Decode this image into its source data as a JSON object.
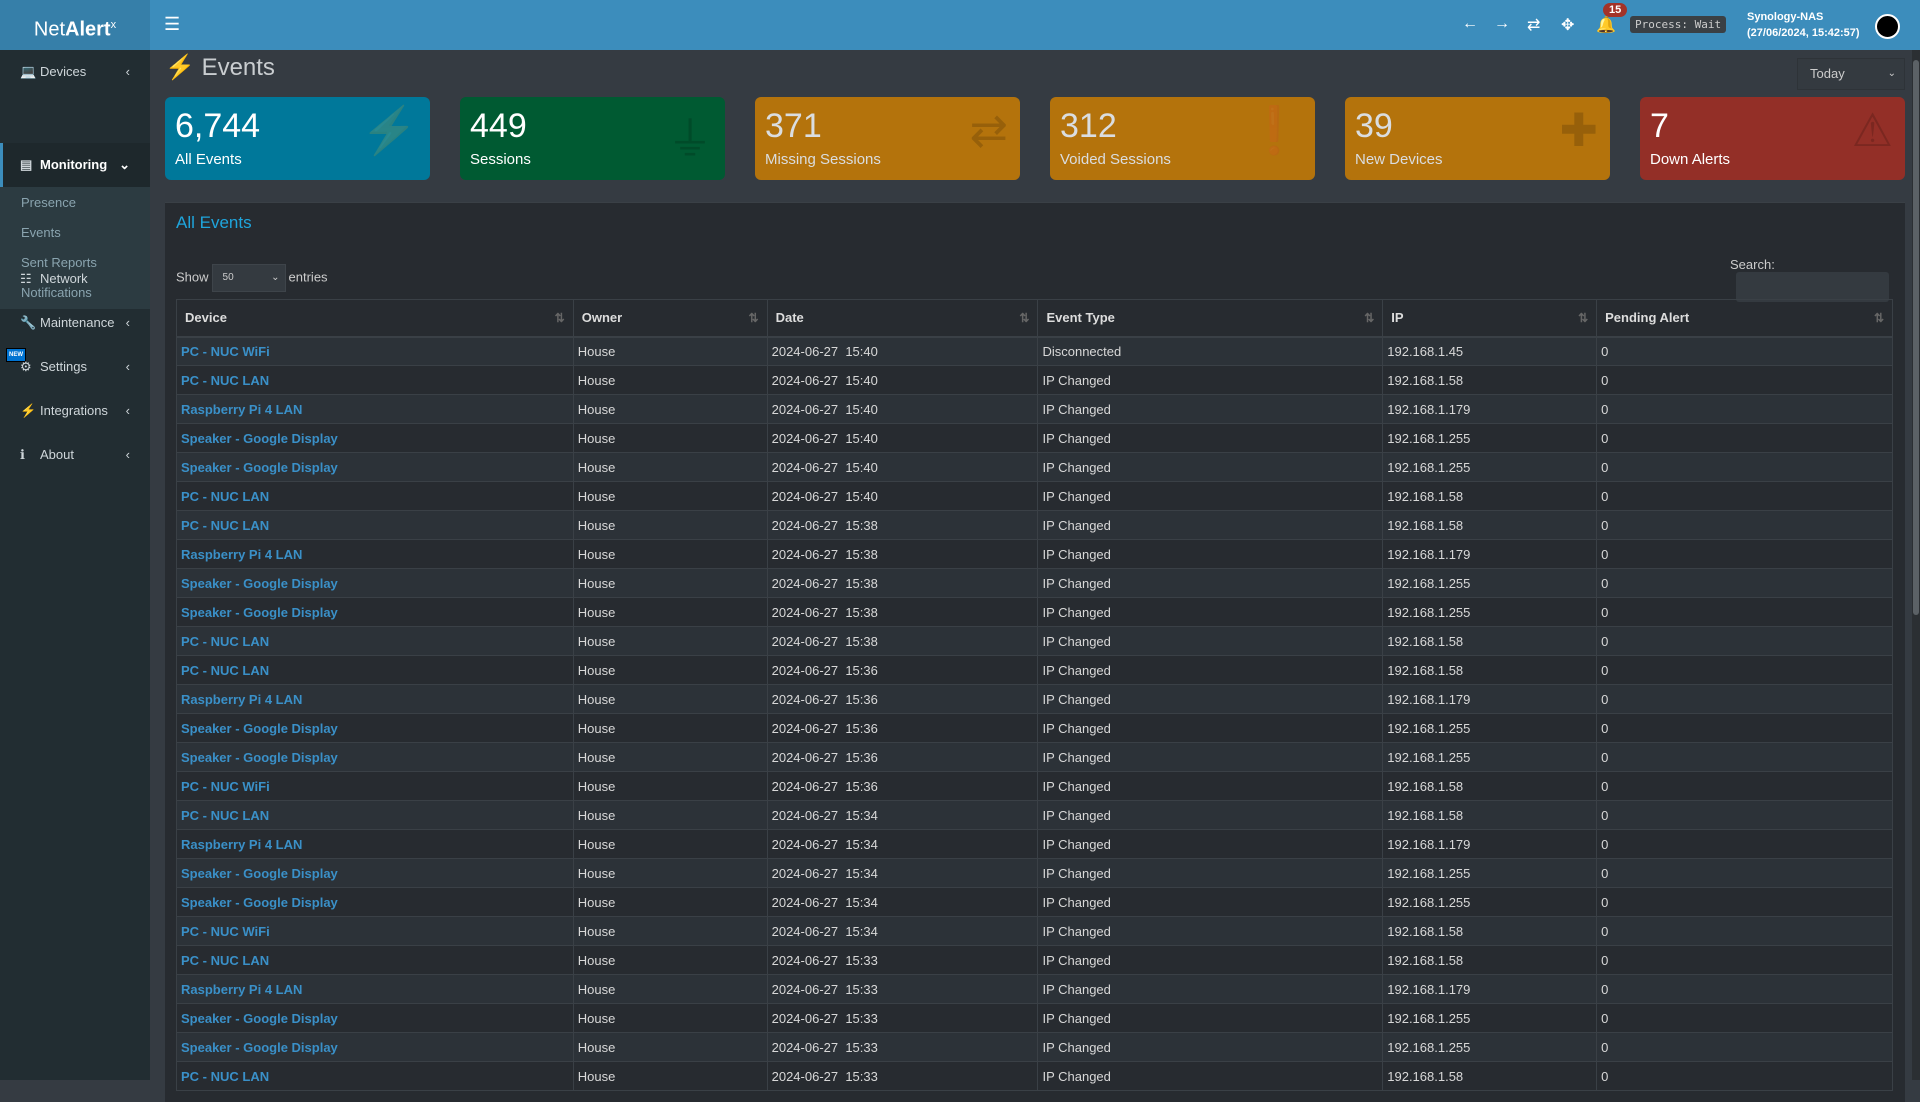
{
  "app": {
    "logo_main": "Net",
    "logo_bold": "Alert",
    "logo_sup": "x"
  },
  "header": {
    "notifications_count": "15",
    "process_status": "Process: Wait",
    "host_name": "Synology-NAS",
    "host_time": "(27/06/2024, 15:42:57)"
  },
  "sidebar": {
    "items": [
      {
        "label": "Devices",
        "icon": "laptop-icon"
      },
      {
        "label": "Monitoring",
        "icon": "chart-icon",
        "active": true,
        "subitems": [
          "Presence",
          "Events",
          "Sent Reports",
          "Notifications"
        ]
      },
      {
        "label": "Network",
        "icon": "network-icon"
      },
      {
        "label": "Maintenance",
        "icon": "wrench-icon",
        "badge": "NEW"
      },
      {
        "label": "Settings",
        "icon": "gear-icon"
      },
      {
        "label": "Integrations",
        "icon": "plug-icon"
      },
      {
        "label": "About",
        "icon": "info-icon"
      }
    ]
  },
  "page": {
    "title": "Events",
    "period": "Today"
  },
  "cards": [
    {
      "value": "6,744",
      "label": "All Events",
      "color": "#00789a",
      "icon": "bolt-icon"
    },
    {
      "value": "449",
      "label": "Sessions",
      "color": "#005a32",
      "icon": "plug-icon"
    },
    {
      "value": "371",
      "label": "Missing Sessions",
      "color": "#b4730c",
      "icon": "exchange-icon"
    },
    {
      "value": "312",
      "label": "Voided Sessions",
      "color": "#b4730c",
      "icon": "exclamation-icon"
    },
    {
      "value": "39",
      "label": "New Devices",
      "color": "#b4730c",
      "icon": "plus-icon"
    },
    {
      "value": "7",
      "label": "Down Alerts",
      "color": "#932f27",
      "icon": "warning-icon"
    }
  ],
  "table": {
    "title": "All Events",
    "show_label": "Show",
    "entries_value": "50",
    "entries_label": "entries",
    "search_label": "Search:",
    "columns": [
      "Device",
      "Owner",
      "Date",
      "Event Type",
      "IP",
      "Pending Alert"
    ],
    "rows": [
      [
        "PC - NUC WiFi",
        "House",
        "2024-06-27  15:40",
        "Disconnected",
        "192.168.1.45",
        "0"
      ],
      [
        "PC - NUC LAN",
        "House",
        "2024-06-27  15:40",
        "IP Changed",
        "192.168.1.58",
        "0"
      ],
      [
        "Raspberry Pi 4 LAN",
        "House",
        "2024-06-27  15:40",
        "IP Changed",
        "192.168.1.179",
        "0"
      ],
      [
        "Speaker - Google Display",
        "House",
        "2024-06-27  15:40",
        "IP Changed",
        "192.168.1.255",
        "0"
      ],
      [
        "Speaker - Google Display",
        "House",
        "2024-06-27  15:40",
        "IP Changed",
        "192.168.1.255",
        "0"
      ],
      [
        "PC - NUC LAN",
        "House",
        "2024-06-27  15:40",
        "IP Changed",
        "192.168.1.58",
        "0"
      ],
      [
        "PC - NUC LAN",
        "House",
        "2024-06-27  15:38",
        "IP Changed",
        "192.168.1.58",
        "0"
      ],
      [
        "Raspberry Pi 4 LAN",
        "House",
        "2024-06-27  15:38",
        "IP Changed",
        "192.168.1.179",
        "0"
      ],
      [
        "Speaker - Google Display",
        "House",
        "2024-06-27  15:38",
        "IP Changed",
        "192.168.1.255",
        "0"
      ],
      [
        "Speaker - Google Display",
        "House",
        "2024-06-27  15:38",
        "IP Changed",
        "192.168.1.255",
        "0"
      ],
      [
        "PC - NUC LAN",
        "House",
        "2024-06-27  15:38",
        "IP Changed",
        "192.168.1.58",
        "0"
      ],
      [
        "PC - NUC LAN",
        "House",
        "2024-06-27  15:36",
        "IP Changed",
        "192.168.1.58",
        "0"
      ],
      [
        "Raspberry Pi 4 LAN",
        "House",
        "2024-06-27  15:36",
        "IP Changed",
        "192.168.1.179",
        "0"
      ],
      [
        "Speaker - Google Display",
        "House",
        "2024-06-27  15:36",
        "IP Changed",
        "192.168.1.255",
        "0"
      ],
      [
        "Speaker - Google Display",
        "House",
        "2024-06-27  15:36",
        "IP Changed",
        "192.168.1.255",
        "0"
      ],
      [
        "PC - NUC WiFi",
        "House",
        "2024-06-27  15:36",
        "IP Changed",
        "192.168.1.58",
        "0"
      ],
      [
        "PC - NUC LAN",
        "House",
        "2024-06-27  15:34",
        "IP Changed",
        "192.168.1.58",
        "0"
      ],
      [
        "Raspberry Pi 4 LAN",
        "House",
        "2024-06-27  15:34",
        "IP Changed",
        "192.168.1.179",
        "0"
      ],
      [
        "Speaker - Google Display",
        "House",
        "2024-06-27  15:34",
        "IP Changed",
        "192.168.1.255",
        "0"
      ],
      [
        "Speaker - Google Display",
        "House",
        "2024-06-27  15:34",
        "IP Changed",
        "192.168.1.255",
        "0"
      ],
      [
        "PC - NUC WiFi",
        "House",
        "2024-06-27  15:34",
        "IP Changed",
        "192.168.1.58",
        "0"
      ],
      [
        "PC - NUC LAN",
        "House",
        "2024-06-27  15:33",
        "IP Changed",
        "192.168.1.58",
        "0"
      ],
      [
        "Raspberry Pi 4 LAN",
        "House",
        "2024-06-27  15:33",
        "IP Changed",
        "192.168.1.179",
        "0"
      ],
      [
        "Speaker - Google Display",
        "House",
        "2024-06-27  15:33",
        "IP Changed",
        "192.168.1.255",
        "0"
      ],
      [
        "Speaker - Google Display",
        "House",
        "2024-06-27  15:33",
        "IP Changed",
        "192.168.1.255",
        "0"
      ],
      [
        "PC - NUC LAN",
        "House",
        "2024-06-27  15:33",
        "IP Changed",
        "192.168.1.58",
        "0"
      ]
    ]
  }
}
